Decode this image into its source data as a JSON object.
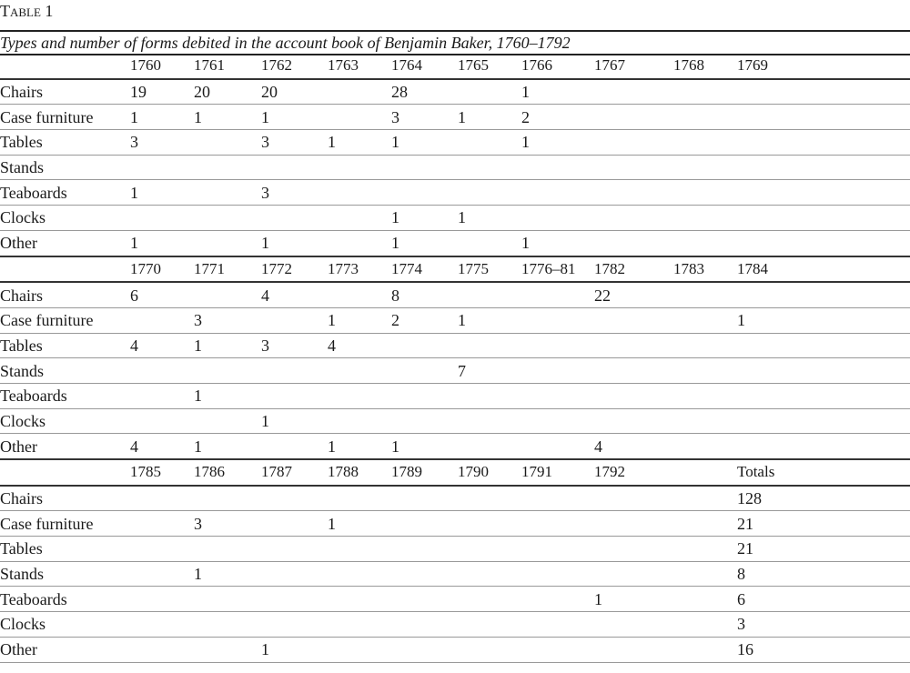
{
  "title": "Table 1",
  "caption": "Types and number of forms debited in the account book of Benjamin Baker, 1760–1792",
  "blocks": [
    {
      "headers": [
        "",
        "1760",
        "1761",
        "1762",
        "1763",
        "1764",
        "1765",
        "1766",
        "1767",
        "1768",
        "1769"
      ],
      "rows": [
        [
          "Chairs",
          "19",
          "20",
          "20",
          "",
          "28",
          "",
          "1",
          "",
          "",
          ""
        ],
        [
          "Case furniture",
          "1",
          "1",
          "1",
          "",
          "3",
          "1",
          "2",
          "",
          "",
          ""
        ],
        [
          "Tables",
          "3",
          "",
          "3",
          "1",
          "1",
          "",
          "1",
          "",
          "",
          ""
        ],
        [
          "Stands",
          "",
          "",
          "",
          "",
          "",
          "",
          "",
          "",
          "",
          ""
        ],
        [
          "Teaboards",
          "1",
          "",
          "3",
          "",
          "",
          "",
          "",
          "",
          "",
          ""
        ],
        [
          "Clocks",
          "",
          "",
          "",
          "",
          "1",
          "1",
          "",
          "",
          "",
          ""
        ],
        [
          "Other",
          "1",
          "",
          "1",
          "",
          "1",
          "",
          "1",
          "",
          "",
          ""
        ]
      ]
    },
    {
      "headers": [
        "",
        "1770",
        "1771",
        "1772",
        "1773",
        "1774",
        "1775",
        "1776–81",
        "1782",
        "1783",
        "1784"
      ],
      "rows": [
        [
          "Chairs",
          "6",
          "",
          "4",
          "",
          "8",
          "",
          "",
          "22",
          "",
          ""
        ],
        [
          "Case furniture",
          "",
          "3",
          "",
          "1",
          "2",
          "1",
          "",
          "",
          "",
          "1"
        ],
        [
          "Tables",
          "4",
          "1",
          "3",
          "4",
          "",
          "",
          "",
          "",
          "",
          ""
        ],
        [
          "Stands",
          "",
          "",
          "",
          "",
          "",
          "7",
          "",
          "",
          "",
          ""
        ],
        [
          "Teaboards",
          "",
          "1",
          "",
          "",
          "",
          "",
          "",
          "",
          "",
          ""
        ],
        [
          "Clocks",
          "",
          "",
          "1",
          "",
          "",
          "",
          "",
          "",
          "",
          ""
        ],
        [
          "Other",
          "4",
          "1",
          "",
          "1",
          "1",
          "",
          "",
          "4",
          "",
          ""
        ]
      ]
    },
    {
      "headers": [
        "",
        "1785",
        "1786",
        "1787",
        "1788",
        "1789",
        "1790",
        "1791",
        "1792",
        "",
        "Totals"
      ],
      "rows": [
        [
          "Chairs",
          "",
          "",
          "",
          "",
          "",
          "",
          "",
          "",
          "",
          "128"
        ],
        [
          "Case furniture",
          "",
          "3",
          "",
          "1",
          "",
          "",
          "",
          "",
          "",
          "21"
        ],
        [
          "Tables",
          "",
          "",
          "",
          "",
          "",
          "",
          "",
          "",
          "",
          "21"
        ],
        [
          "Stands",
          "",
          "1",
          "",
          "",
          "",
          "",
          "",
          "",
          "",
          "8"
        ],
        [
          "Teaboards",
          "",
          "",
          "",
          "",
          "",
          "",
          "",
          "1",
          "",
          "6"
        ],
        [
          "Clocks",
          "",
          "",
          "",
          "",
          "",
          "",
          "",
          "",
          "",
          "3"
        ],
        [
          "Other",
          "",
          "",
          "1",
          "",
          "",
          "",
          "",
          "",
          "",
          "16"
        ]
      ]
    }
  ]
}
